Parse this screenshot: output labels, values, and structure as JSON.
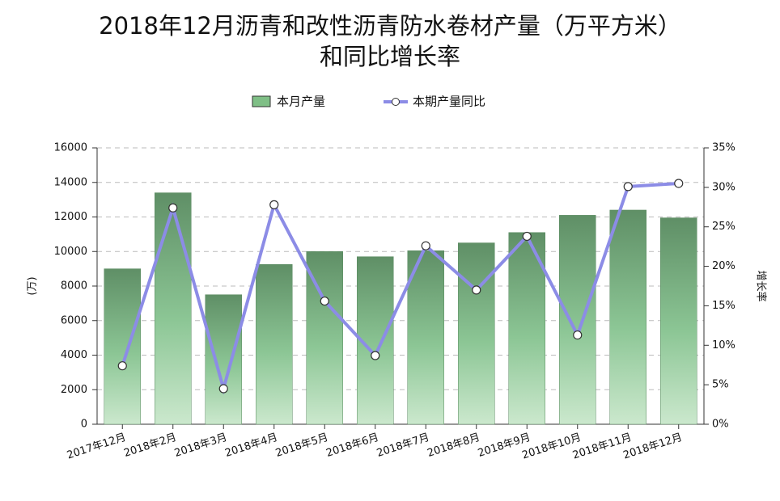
{
  "chart_data": {
    "type": "bar-line",
    "title": [
      "2018年12月沥青和改性沥青防水卷材产量（万平方米）",
      "和同比增长率"
    ],
    "y_label": "(万)",
    "y2_label": "增长率",
    "categories": [
      "2017年12月",
      "2018年2月",
      "2018年3月",
      "2018年4月",
      "2018年5月",
      "2018年6月",
      "2018年7月",
      "2018年8月",
      "2018年9月",
      "2018年10月",
      "2018年11月",
      "2018年12月"
    ],
    "series": [
      {
        "name": "本月产量",
        "type": "bar",
        "color": "#7fbf86",
        "values": [
          9000,
          13400,
          7500,
          9250,
          10000,
          9700,
          10050,
          10500,
          11100,
          12100,
          12400,
          11950
        ]
      },
      {
        "name": "本期产量同比",
        "type": "line",
        "axis": "y2",
        "color": "#8c8ce6",
        "values": [
          7.4,
          27.4,
          4.5,
          27.8,
          15.6,
          8.7,
          22.6,
          17.0,
          23.8,
          11.3,
          30.1,
          30.5
        ]
      }
    ],
    "ylim": [
      0,
      16000
    ],
    "yticks": [
      0,
      2000,
      4000,
      6000,
      8000,
      10000,
      12000,
      14000,
      16000
    ],
    "y2lim": [
      0,
      35
    ],
    "y2ticks": [
      {
        "value": 0,
        "label": "0%"
      },
      {
        "value": 5,
        "label": "5%"
      },
      {
        "value": 10,
        "label": "10%"
      },
      {
        "value": 15,
        "label": "15%"
      },
      {
        "value": 20,
        "label": "20%"
      },
      {
        "value": 25,
        "label": "25%"
      },
      {
        "value": 30,
        "label": "30%"
      },
      {
        "value": 35,
        "label": "35%"
      }
    ],
    "grid": true
  }
}
